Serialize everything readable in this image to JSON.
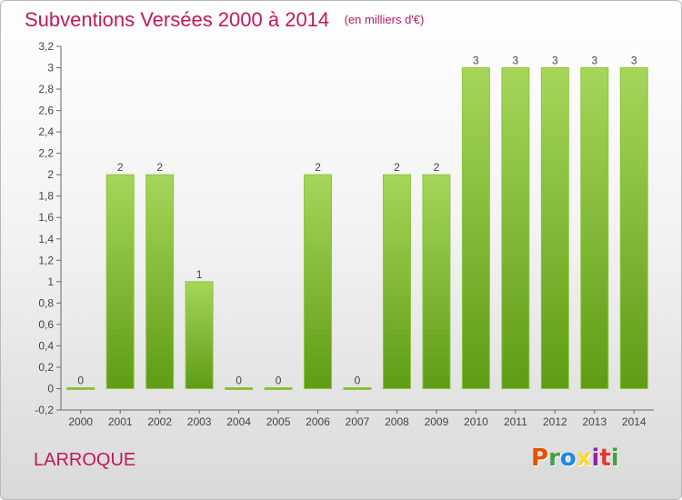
{
  "header": {
    "title": "Subventions Versées 2000 à 2014",
    "subtitle": "(en milliers d'€)"
  },
  "footer": {
    "commune": "LARROQUE",
    "brand_letters": [
      "P",
      "r",
      "o",
      "x",
      "i",
      "t",
      "i"
    ],
    "brand_colors": [
      "#e65100",
      "#43a047",
      "#1e88e5",
      "#fdd835",
      "#8e24aa",
      "#e53935",
      "#43a047"
    ]
  },
  "chart_data": {
    "type": "bar",
    "title": "Subventions Versées 2000 à 2014",
    "subtitle": "(en milliers d'€)",
    "categories": [
      "2000",
      "2001",
      "2002",
      "2003",
      "2004",
      "2005",
      "2006",
      "2007",
      "2008",
      "2009",
      "2010",
      "2011",
      "2012",
      "2013",
      "2014"
    ],
    "values": [
      0,
      2,
      2,
      1,
      0,
      0,
      2,
      0,
      2,
      2,
      3,
      3,
      3,
      3,
      3
    ],
    "data_labels": [
      "0",
      "2",
      "2",
      "1",
      "0",
      "0",
      "2",
      "0",
      "2",
      "2",
      "3",
      "3",
      "3",
      "3",
      "3"
    ],
    "ylim": [
      -0.2,
      3.2
    ],
    "yticks": [
      -0.2,
      0,
      0.2,
      0.4,
      0.6,
      0.8,
      1,
      1.2,
      1.4,
      1.6,
      1.8,
      2,
      2.2,
      2.4,
      2.6,
      2.8,
      3,
      3.2
    ],
    "ytick_labels": [
      "-0,2",
      "0",
      "0,2",
      "0,4",
      "0,6",
      "0,8",
      "1",
      "1,2",
      "1,4",
      "1,6",
      "1,8",
      "2",
      "2,2",
      "2,4",
      "2,6",
      "2,8",
      "3",
      "3,2"
    ],
    "grid": false,
    "legend": "none",
    "colors": {
      "bar_light": "#a6d65a",
      "bar_dark": "#5f9c14",
      "bar_stroke": "#8cc63f",
      "axis": "#666666"
    }
  }
}
